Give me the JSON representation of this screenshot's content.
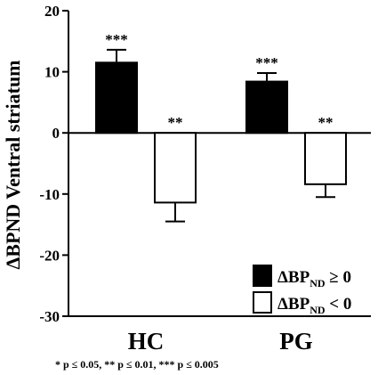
{
  "chart_data": {
    "type": "bar",
    "categories": [
      "HC",
      "PG"
    ],
    "series": [
      {
        "name": "ΔBP_ND ≥ 0",
        "values": [
          11.5,
          8.4
        ],
        "errors": [
          2.1,
          1.4
        ],
        "significance": [
          "***",
          "***"
        ],
        "fill": "#000000"
      },
      {
        "name": "ΔBP_ND < 0",
        "values": [
          -11.4,
          -8.4
        ],
        "errors": [
          3.1,
          2.1
        ],
        "significance": [
          "**",
          "**"
        ],
        "fill": "#ffffff"
      }
    ],
    "ylabel": "ΔBPND Ventral striatum",
    "ylim": [
      -30,
      20
    ],
    "yticks": [
      20,
      10,
      0,
      -10,
      -20,
      -30
    ],
    "ytick_labels": [
      "20",
      "10",
      "0",
      "-10",
      "-20",
      "-30"
    ],
    "legend": {
      "placement": "bottom-right",
      "entries": [
        {
          "main": "ΔBP",
          "sub": "ND",
          "rest": " ≥ 0"
        },
        {
          "main": "ΔBP",
          "sub": "ND",
          "rest": " < 0"
        }
      ]
    },
    "grid": false
  },
  "footnote": "* p ≤ 0.05, ** p ≤ 0.01, *** p ≤ 0.005"
}
